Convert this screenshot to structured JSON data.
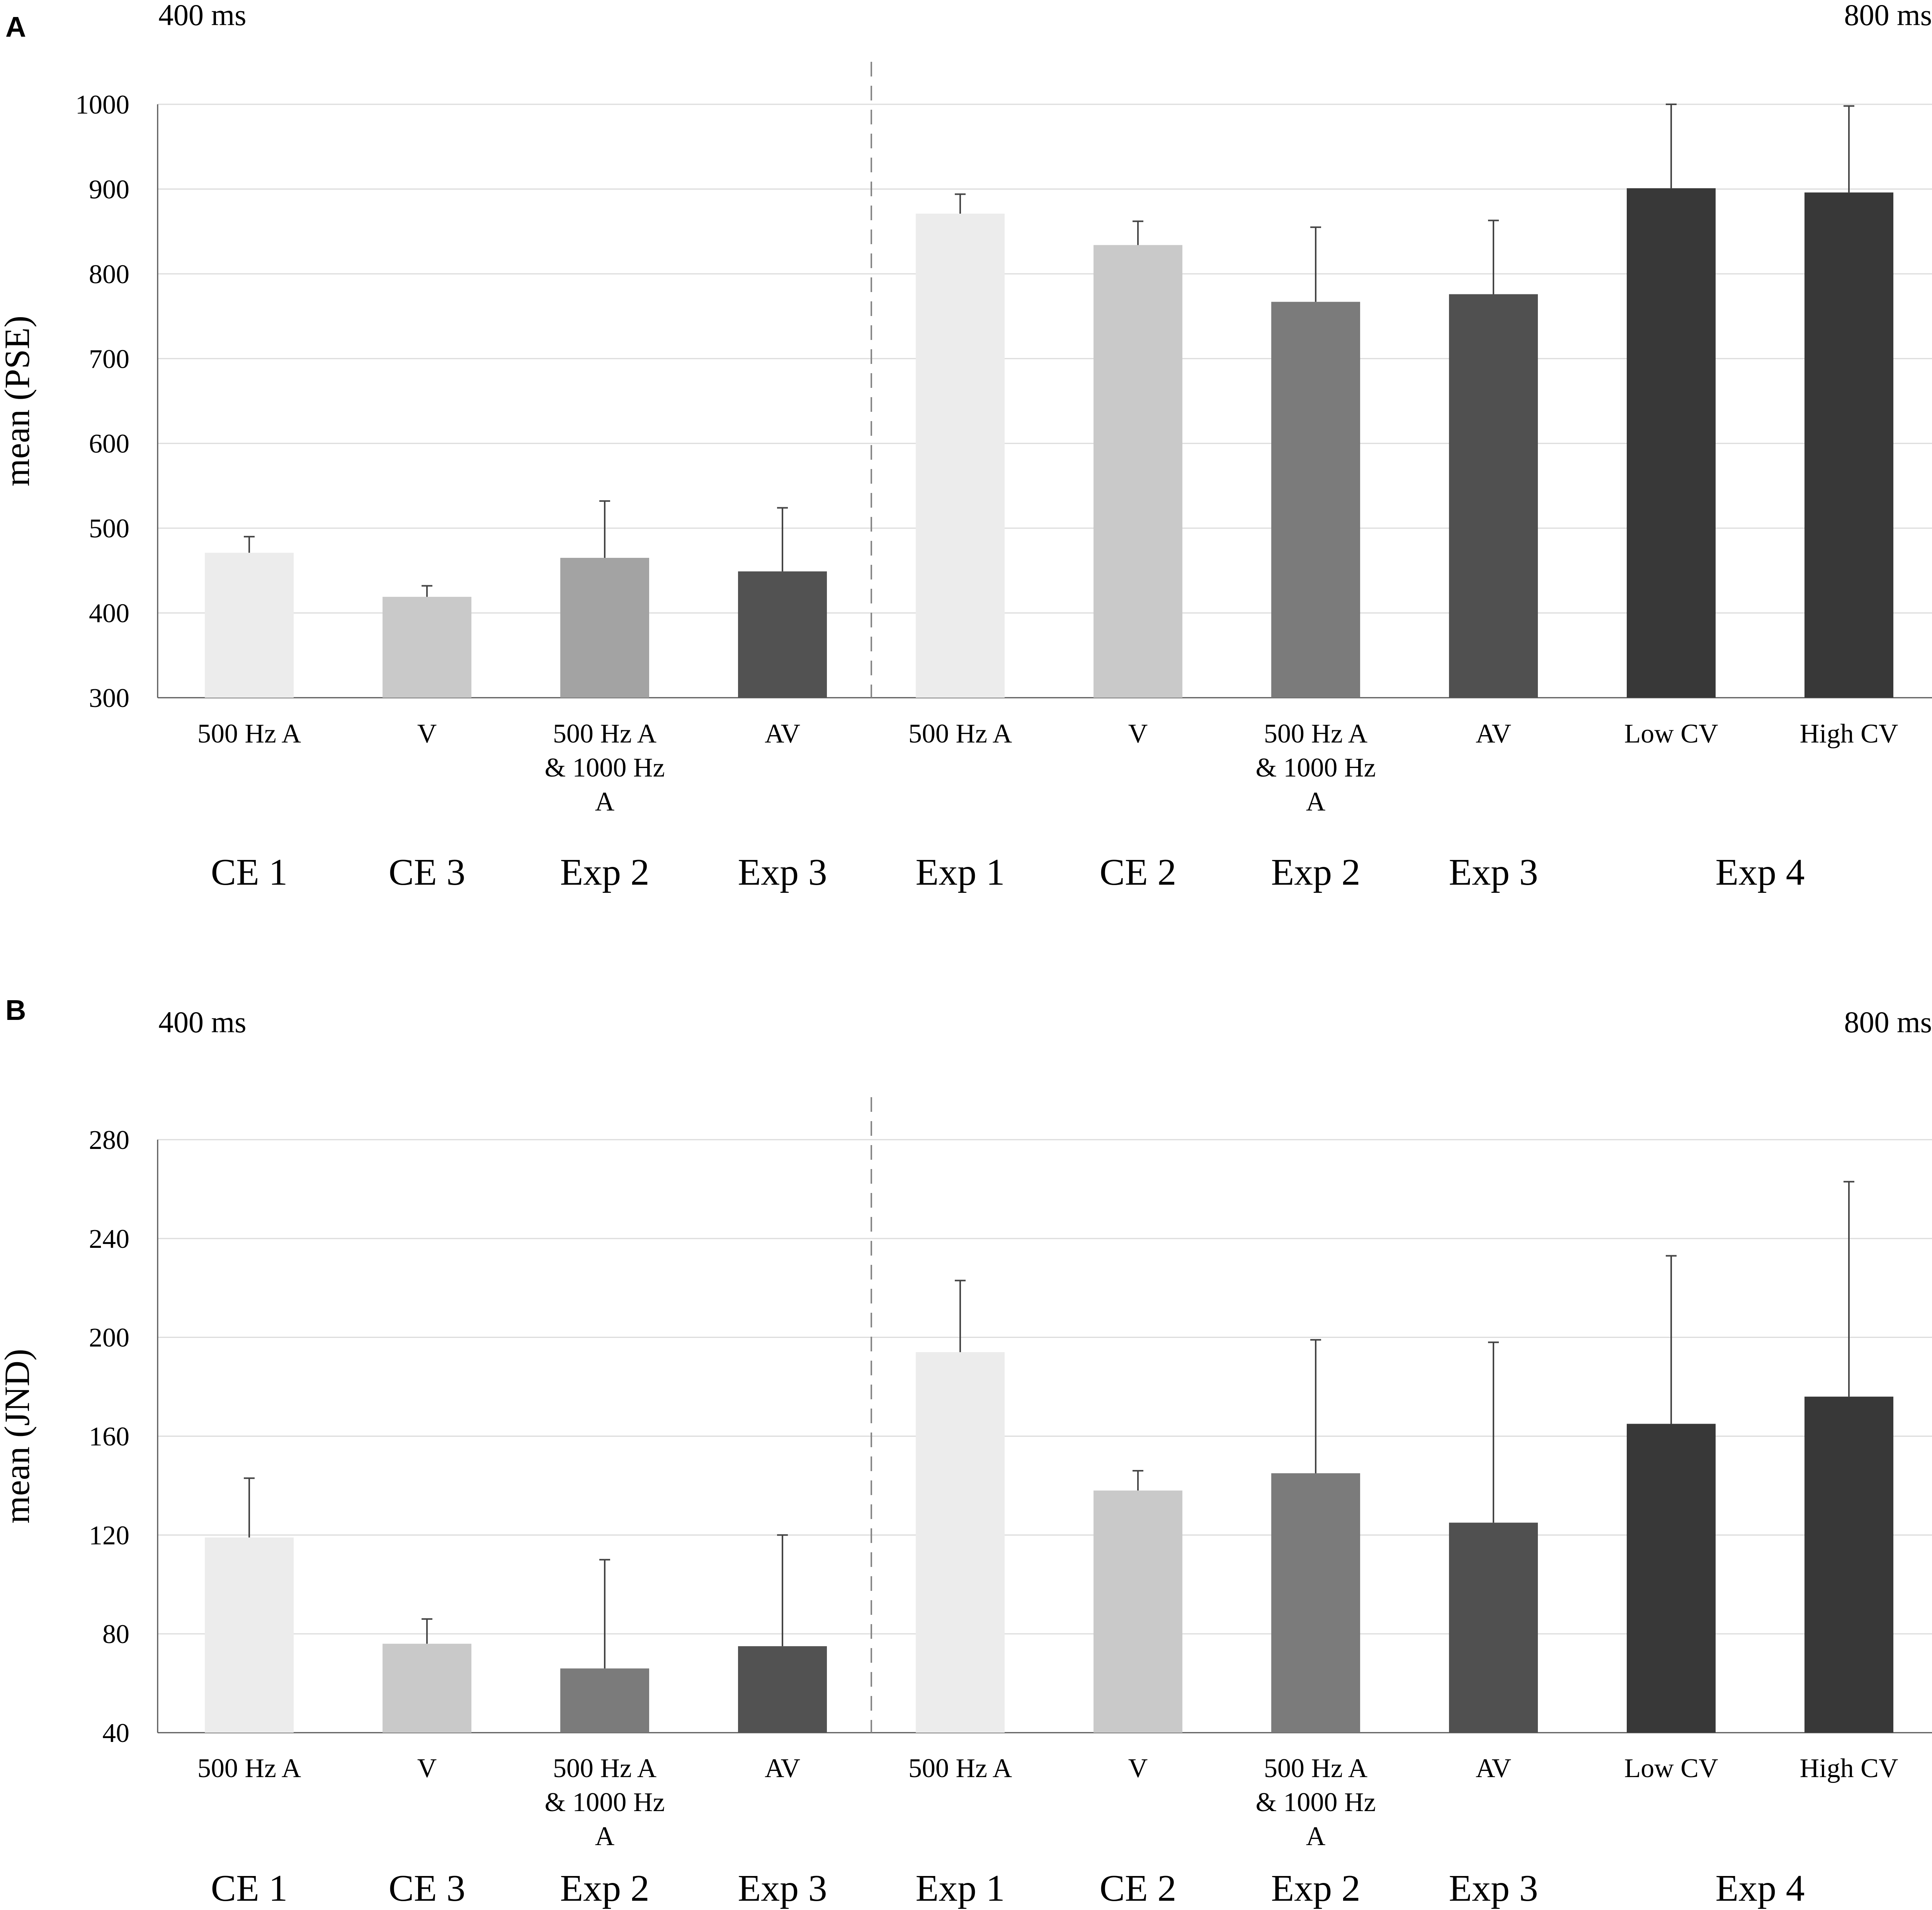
{
  "chart_data": [
    {
      "type": "bar",
      "panel_label": "A",
      "left_condition": "400 ms",
      "right_condition": "800 ms",
      "ylabel": "mean (PSE)",
      "ylim": [
        300,
        1000
      ],
      "yticks": [
        300,
        400,
        500,
        600,
        700,
        800,
        900,
        1000
      ],
      "grid": true,
      "categories": [
        [
          "500 Hz A"
        ],
        [
          "V"
        ],
        [
          "500 Hz A",
          "& 1000 Hz",
          "A"
        ],
        [
          "AV"
        ],
        [
          "500 Hz A"
        ],
        [
          "V"
        ],
        [
          "500 Hz A",
          "& 1000 Hz",
          "A"
        ],
        [
          "AV"
        ],
        [
          "Low CV"
        ],
        [
          "High CV"
        ]
      ],
      "values": [
        471,
        419,
        465,
        449,
        871,
        834,
        767,
        776,
        901,
        896
      ],
      "error_upper": [
        490,
        432,
        532,
        524,
        894,
        862,
        855,
        863,
        1000,
        998
      ],
      "colors": [
        "#ececec",
        "#c9c9c9",
        "#a3a3a3",
        "#525252",
        "#ececec",
        "#c9c9c9",
        "#7b7b7b",
        "#505050",
        "#383838",
        "#383838"
      ],
      "groups": [
        {
          "label": "CE 1",
          "from": 0,
          "to": 0
        },
        {
          "label": "CE 3",
          "from": 1,
          "to": 1
        },
        {
          "label": "Exp 2",
          "from": 2,
          "to": 2
        },
        {
          "label": "Exp 3",
          "from": 3,
          "to": 3
        },
        {
          "label": "Exp 1",
          "from": 4,
          "to": 4
        },
        {
          "label": "CE 2",
          "from": 5,
          "to": 5
        },
        {
          "label": "Exp 2",
          "from": 6,
          "to": 6
        },
        {
          "label": "Exp 3",
          "from": 7,
          "to": 7
        },
        {
          "label": "Exp 4",
          "from": 8,
          "to": 9
        }
      ],
      "divider_after_index": 3
    },
    {
      "type": "bar",
      "panel_label": "B",
      "left_condition": "400 ms",
      "right_condition": "800 ms",
      "ylabel": "mean (JND)",
      "ylim": [
        40,
        280
      ],
      "yticks": [
        40,
        80,
        120,
        160,
        200,
        240,
        280
      ],
      "grid": true,
      "categories": [
        [
          "500 Hz A"
        ],
        [
          "V"
        ],
        [
          "500 Hz A",
          "& 1000 Hz",
          "A"
        ],
        [
          "AV"
        ],
        [
          "500 Hz A"
        ],
        [
          "V"
        ],
        [
          "500 Hz A",
          "& 1000 Hz",
          "A"
        ],
        [
          "AV"
        ],
        [
          "Low CV"
        ],
        [
          "High CV"
        ]
      ],
      "values": [
        119,
        76,
        66,
        75,
        194,
        138,
        145,
        125,
        165,
        176
      ],
      "error_upper": [
        143,
        86,
        110,
        120,
        223,
        146,
        199,
        198,
        233,
        263
      ],
      "colors": [
        "#ececec",
        "#c9c9c9",
        "#7b7b7b",
        "#525252",
        "#ececec",
        "#c9c9c9",
        "#7b7b7b",
        "#505050",
        "#383838",
        "#383838"
      ],
      "groups": [
        {
          "label": "CE 1",
          "from": 0,
          "to": 0
        },
        {
          "label": "CE 3",
          "from": 1,
          "to": 1
        },
        {
          "label": "Exp 2",
          "from": 2,
          "to": 2
        },
        {
          "label": "Exp 3",
          "from": 3,
          "to": 3
        },
        {
          "label": "Exp 1",
          "from": 4,
          "to": 4
        },
        {
          "label": "CE 2",
          "from": 5,
          "to": 5
        },
        {
          "label": "Exp 2",
          "from": 6,
          "to": 6
        },
        {
          "label": "Exp 3",
          "from": 7,
          "to": 7
        },
        {
          "label": "Exp 4",
          "from": 8,
          "to": 9
        }
      ],
      "divider_after_index": 3
    }
  ]
}
